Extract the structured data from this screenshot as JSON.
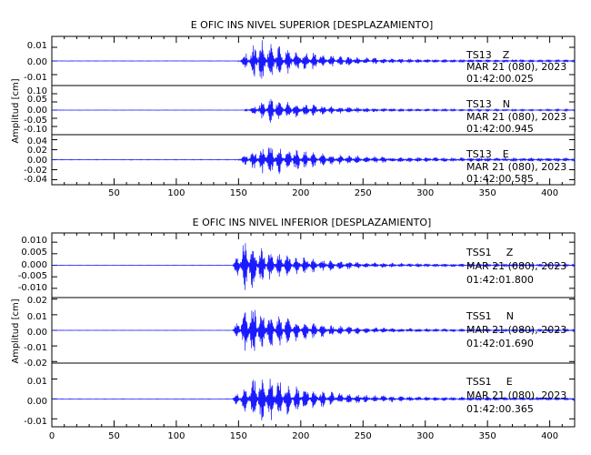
{
  "chart_data": [
    {
      "type": "line",
      "title": "E OFIC INS NIVEL SUPERIOR [DESPLAZAMIENTO]",
      "ylabel": "Amplitud [cm]",
      "xlim": [
        0,
        420
      ],
      "x_ticks": [
        50,
        100,
        150,
        200,
        250,
        300,
        350,
        400
      ],
      "x_tick_labels": [
        "50",
        "100",
        "150",
        "200",
        "250",
        "300",
        "350",
        "400"
      ],
      "color": "#1a1aff",
      "series": [
        {
          "station": "TS13",
          "component": "Z",
          "date": "MAR 21 (080), 2023",
          "time": "01:42:00.025",
          "ylim": [
            -0.018,
            0.018
          ],
          "y_ticks": [
            0.01,
            0.0,
            -0.01
          ],
          "y_tick_labels": [
            "0.01",
            "0.00",
            "-0.01"
          ],
          "onset_x": 150,
          "peak_x": 168,
          "peak_amplitude": 0.017,
          "coda_amplitude": 0.001,
          "duration": 270
        },
        {
          "station": "TS13",
          "component": "N",
          "date": "MAR 21 (080), 2023",
          "time": "01:42:00.945",
          "ylim": [
            -0.15,
            0.15
          ],
          "y_ticks": [
            0.1,
            0.05,
            0.0,
            -0.05,
            -0.1
          ],
          "y_tick_labels": [
            "0.10",
            "0.05",
            "0.00",
            "-0.05",
            "-0.10"
          ],
          "onset_x": 155,
          "peak_x": 175,
          "peak_amplitude": 0.08,
          "coda_amplitude": 0.005,
          "duration": 265
        },
        {
          "station": "TS13",
          "component": "E",
          "date": "MAR 21 (080), 2023",
          "time": "01:42:00.585",
          "ylim": [
            -0.05,
            0.05
          ],
          "y_ticks": [
            0.04,
            0.02,
            0.0,
            -0.02,
            -0.04
          ],
          "y_tick_labels": [
            "0.04",
            "0.02",
            "0.00",
            "-0.02",
            "-0.04"
          ],
          "onset_x": 150,
          "peak_x": 175,
          "peak_amplitude": 0.035,
          "coda_amplitude": 0.004,
          "duration": 270
        }
      ]
    },
    {
      "type": "line",
      "title": "E OFIC INS NIVEL INFERIOR [DESPLAZAMIENTO]",
      "ylabel": "Amplitud [cm]",
      "xlim": [
        0,
        420
      ],
      "x_ticks": [
        0,
        50,
        100,
        150,
        200,
        250,
        300,
        350,
        400
      ],
      "x_tick_labels": [
        "0",
        "50",
        "100",
        "150",
        "200",
        "250",
        "300",
        "350",
        "400"
      ],
      "color": "#1a1aff",
      "series": [
        {
          "station": "TSS1",
          "component": "Z",
          "date": "MAR 21 (080), 2023",
          "time": "01:42:01.800",
          "ylim": [
            -0.014,
            0.014
          ],
          "y_ticks": [
            0.01,
            0.005,
            0.0,
            -0.005,
            -0.01
          ],
          "y_tick_labels": [
            "0.010",
            "0.005",
            "0.000",
            "-0.005",
            "-0.010"
          ],
          "onset_x": 145,
          "peak_x": 155,
          "peak_amplitude": 0.012,
          "coda_amplitude": 0.0006,
          "duration": 275
        },
        {
          "station": "TSS1",
          "component": "N",
          "date": "MAR 21 (080), 2023",
          "time": "01:42:01.690",
          "ylim": [
            -0.021,
            0.021
          ],
          "y_ticks": [
            0.02,
            0.01,
            0.0,
            -0.01,
            -0.02
          ],
          "y_tick_labels": [
            "0.02",
            "0.01",
            "0.00",
            "-0.01",
            "-0.02"
          ],
          "onset_x": 145,
          "peak_x": 158,
          "peak_amplitude": 0.019,
          "coda_amplitude": 0.0008,
          "duration": 275
        },
        {
          "station": "TSS1",
          "component": "E",
          "date": "MAR 21 (080), 2023",
          "time": "01:42:00.365",
          "ylim": [
            -0.014,
            0.018
          ],
          "y_ticks": [
            0.01,
            0.0,
            -0.01
          ],
          "y_tick_labels": [
            "0.01",
            "0.00",
            "-0.01"
          ],
          "onset_x": 145,
          "peak_x": 165,
          "peak_amplitude": 0.0145,
          "coda_amplitude": 0.0008,
          "duration": 275
        }
      ]
    }
  ]
}
